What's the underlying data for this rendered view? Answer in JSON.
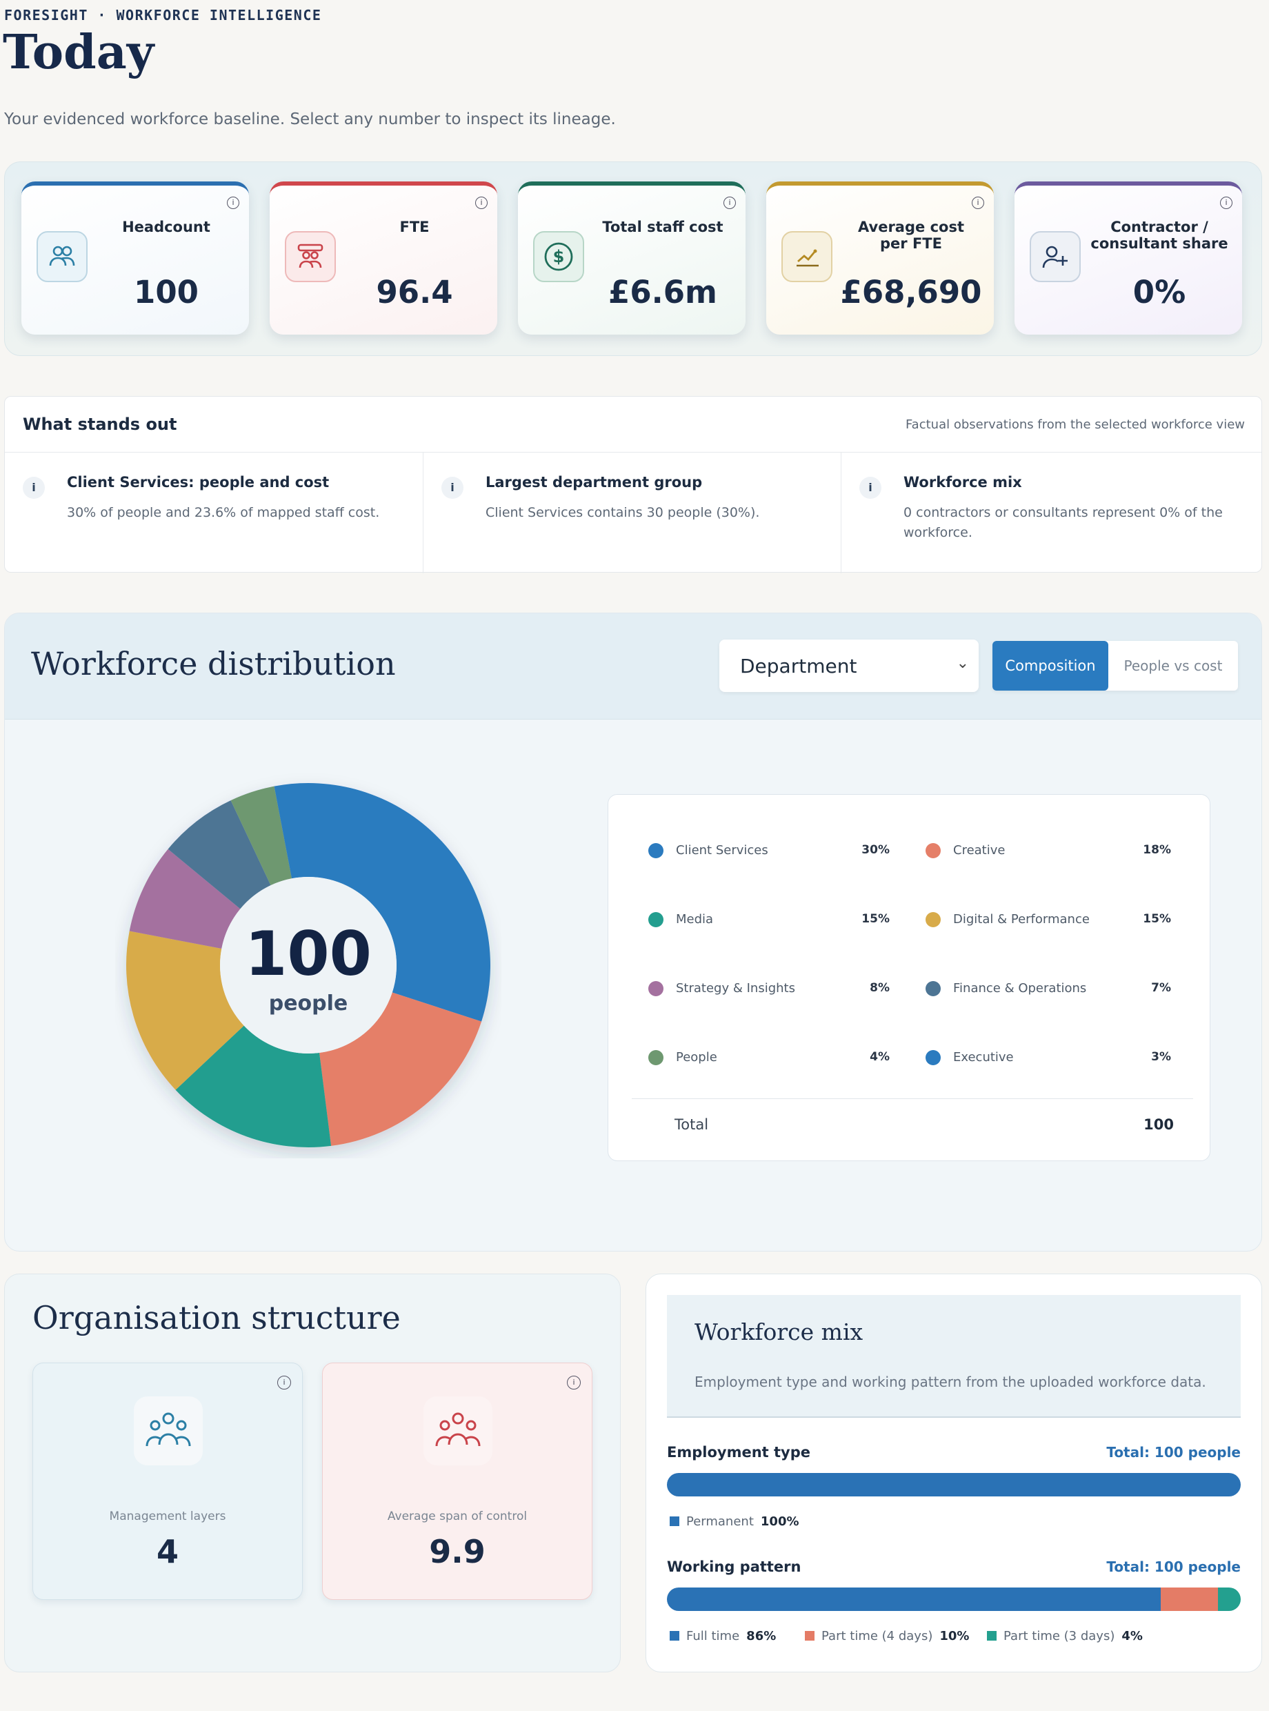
{
  "header": {
    "eyebrow": "FORESIGHT · WORKFORCE INTELLIGENCE",
    "title": "Today",
    "subtitle": "Your evidenced workforce baseline. Select any number to inspect its lineage."
  },
  "kpis": [
    {
      "label": "Headcount",
      "value": "100",
      "icon": "people-icon",
      "accent": "#2b6fb0"
    },
    {
      "label": "FTE",
      "value": "96.4",
      "icon": "people-badge-icon",
      "accent": "#d0474c"
    },
    {
      "label": "Total staff cost",
      "value": "£6.6m",
      "icon": "dollar-icon",
      "accent": "#1f6e5a"
    },
    {
      "label": "Average cost per FTE",
      "value": "£68,690",
      "icon": "trend-chart-icon",
      "accent": "#c39a30"
    },
    {
      "label": "Contractor / consultant share",
      "value": "0%",
      "icon": "add-person-icon",
      "accent": "#6c5a9e"
    }
  ],
  "standout": {
    "title": "What stands out",
    "note": "Factual observations from the selected workforce view",
    "items": [
      {
        "title": "Client Services: people and cost",
        "desc": "30% of people and 23.6% of mapped staff cost."
      },
      {
        "title": "Largest department group",
        "desc": "Client Services contains 30 people (30%)."
      },
      {
        "title": "Workforce mix",
        "desc": "0 contractors or consultants represent 0% of the workforce."
      }
    ]
  },
  "distribution": {
    "title": "Workforce distribution",
    "dropdown_value": "Department",
    "toggle_active": "Composition",
    "toggle_inactive": "People vs cost",
    "center_value": "100",
    "center_label": "people",
    "total_label": "Total",
    "total_value": "100"
  },
  "chart_data": {
    "type": "pie",
    "categories": [
      "Client Services",
      "Creative",
      "Media",
      "Digital & Performance",
      "Strategy & Insights",
      "Finance & Operations",
      "People",
      "Executive"
    ],
    "values": [
      30,
      18,
      15,
      15,
      8,
      7,
      4,
      3
    ],
    "labels": [
      "30%",
      "18%",
      "15%",
      "15%",
      "8%",
      "7%",
      "4%",
      "3%"
    ],
    "colors": [
      "#2b7bbf",
      "#e57f68",
      "#239e8f",
      "#d8ab4a",
      "#a4719f",
      "#4d7594",
      "#6e9870",
      "#2b7bbf"
    ]
  },
  "org": {
    "title": "Organisation structure",
    "cards": [
      {
        "label": "Management layers",
        "value": "4"
      },
      {
        "label": "Average span of control",
        "value": "9.9"
      }
    ]
  },
  "mix": {
    "title": "Workforce mix",
    "desc": "Employment type and working pattern from the uploaded workforce data.",
    "employment": {
      "label": "Employment type",
      "total": "Total: 100 people",
      "segments": [
        {
          "name": "Permanent",
          "pct": "100%",
          "value": 100,
          "color": "#2a72b5"
        }
      ]
    },
    "pattern": {
      "label": "Working pattern",
      "total": "Total: 100 people",
      "segments": [
        {
          "name": "Full time",
          "pct": "86%",
          "value": 86,
          "color": "#2a72b5"
        },
        {
          "name": "Part time (4 days)",
          "pct": "10%",
          "value": 10,
          "color": "#e47c66"
        },
        {
          "name": "Part time (3 days)",
          "pct": "4%",
          "value": 4,
          "color": "#23a08f"
        }
      ]
    }
  }
}
